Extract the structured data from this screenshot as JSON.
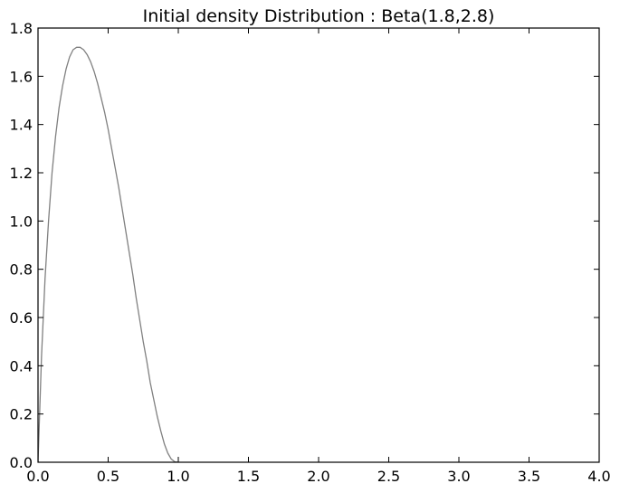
{
  "chart_data": {
    "type": "line",
    "title": "Initial density Distribution : Beta(1.8,2.8)",
    "xlabel": "",
    "ylabel": "",
    "xlim": [
      0.0,
      4.0
    ],
    "ylim": [
      0.0,
      1.8
    ],
    "x_ticks": [
      0.0,
      0.5,
      1.0,
      1.5,
      2.0,
      2.5,
      3.0,
      3.5,
      4.0
    ],
    "x_tick_labels": [
      "0.0",
      "0.5",
      "1.0",
      "1.5",
      "2.0",
      "2.5",
      "3.0",
      "3.5",
      "4.0"
    ],
    "y_ticks": [
      0.0,
      0.2,
      0.4,
      0.6,
      0.8,
      1.0,
      1.2,
      1.4,
      1.6,
      1.8
    ],
    "y_tick_labels": [
      "0.0",
      "0.2",
      "0.4",
      "0.6",
      "0.8",
      "1.0",
      "1.2",
      "1.4",
      "1.6",
      "1.8"
    ],
    "grid": false,
    "series": [
      {
        "color": "#808080",
        "x": [
          0.0,
          0.025,
          0.05,
          0.075,
          0.1,
          0.125,
          0.15,
          0.175,
          0.2,
          0.225,
          0.25,
          0.275,
          0.3,
          0.325,
          0.35,
          0.375,
          0.4,
          0.425,
          0.45,
          0.475,
          0.5,
          0.525,
          0.55,
          0.575,
          0.6,
          0.625,
          0.65,
          0.675,
          0.7,
          0.725,
          0.75,
          0.775,
          0.8,
          0.825,
          0.85,
          0.875,
          0.9,
          0.925,
          0.95,
          0.975,
          1.0
        ],
        "y": [
          0.0,
          0.44,
          0.76,
          1.0,
          1.2,
          1.35,
          1.47,
          1.56,
          1.63,
          1.68,
          1.71,
          1.72,
          1.72,
          1.71,
          1.69,
          1.66,
          1.62,
          1.57,
          1.51,
          1.45,
          1.38,
          1.3,
          1.22,
          1.14,
          1.05,
          0.96,
          0.87,
          0.78,
          0.68,
          0.59,
          0.5,
          0.42,
          0.33,
          0.26,
          0.19,
          0.13,
          0.077,
          0.038,
          0.013,
          0.002,
          0.0
        ]
      }
    ]
  }
}
